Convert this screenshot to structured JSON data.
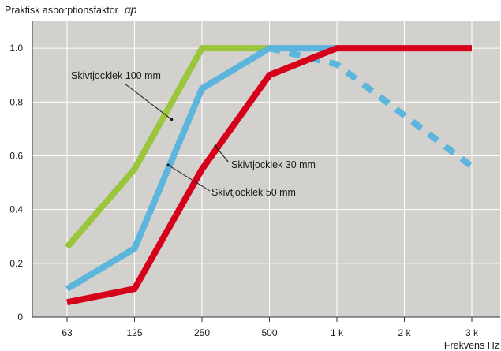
{
  "chart_data": {
    "type": "line",
    "title": "Praktisk asborptionsfaktor",
    "title_symbol": "αp",
    "xlabel": "Frekvens Hz",
    "ylabel": "",
    "categories": [
      "63",
      "125",
      "250",
      "500",
      "1 k",
      "2 k",
      "3 k"
    ],
    "ylim": [
      0,
      1.1
    ],
    "yticks": [
      "0",
      "0.2",
      "0.4",
      "0.6",
      "0.8",
      "1.0"
    ],
    "ytick_values": [
      0,
      0.2,
      0.4,
      0.6,
      0.8,
      1.0
    ],
    "grid": true,
    "background": "#d2d1cd",
    "series": [
      {
        "label": "Skivtjocklek 100 mm",
        "color": "#9bc53d",
        "dashed": false,
        "points": [
          [
            0,
            0.26
          ],
          [
            1,
            0.55
          ],
          [
            2,
            1.0
          ],
          [
            3,
            1.0
          ]
        ]
      },
      {
        "label": "Skivtjocklek 50 mm",
        "color": "#5bb5dc",
        "dashed": false,
        "points": [
          [
            0,
            0.105
          ],
          [
            1,
            0.255
          ],
          [
            2,
            0.85
          ],
          [
            3,
            1.0
          ],
          [
            4,
            1.0
          ]
        ]
      },
      {
        "label": "",
        "color": "#5bb5dc",
        "dashed": true,
        "points": [
          [
            3,
            1.0
          ],
          [
            4,
            0.94
          ],
          [
            5,
            0.75
          ],
          [
            6,
            0.56
          ]
        ]
      },
      {
        "label": "Skivtjocklek 30 mm",
        "color": "#d7001a",
        "dashed": false,
        "points": [
          [
            0,
            0.055
          ],
          [
            1,
            0.105
          ],
          [
            2,
            0.55
          ],
          [
            3,
            0.9
          ],
          [
            4,
            1.0
          ],
          [
            5,
            1.0
          ],
          [
            6,
            1.0
          ]
        ]
      }
    ],
    "annotations": [
      {
        "text": "Skivtjocklek 100 mm",
        "point": [
          1.55,
          0.735
        ]
      },
      {
        "text": "Skivtjocklek 30 mm",
        "point": [
          2.2,
          0.635
        ]
      },
      {
        "text": "Skivtjocklek 50 mm",
        "point": [
          1.5,
          0.565
        ]
      }
    ]
  }
}
